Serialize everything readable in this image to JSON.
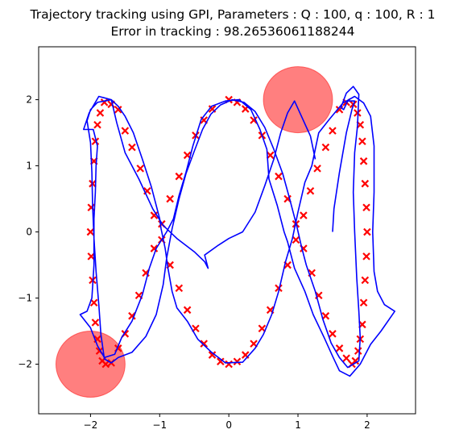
{
  "chart_data": {
    "type": "scatter",
    "title": "Trajectory tracking using GPI, Parameters : Q : 100, q : 100, R : 1",
    "subtitle": "Error in tracking : 98.26536061188244",
    "xlabel": "",
    "ylabel": "",
    "xlim": [
      -2.75,
      2.7
    ],
    "ylim": [
      -2.75,
      2.8
    ],
    "xticks": [
      -2,
      -1,
      0,
      1,
      2
    ],
    "yticks": [
      -2,
      -1,
      0,
      1,
      2
    ],
    "xtick_labels": [
      "−2",
      "−1",
      "0",
      "1",
      "2"
    ],
    "ytick_labels": [
      "−2",
      "−1",
      "0",
      "1",
      "2"
    ],
    "grid": false,
    "obstacles": [
      {
        "cx": 1.0,
        "cy": 2.0,
        "r": 0.5,
        "color": "#ff0000",
        "alpha": 0.5
      },
      {
        "cx": -2.0,
        "cy": -2.0,
        "r": 0.5,
        "color": "#ff0000",
        "alpha": 0.5
      }
    ],
    "reference": {
      "marker": "x",
      "color": "#ff0000",
      "points": [
        [
          0.0,
          2.0
        ],
        [
          0.12,
          1.96
        ],
        [
          0.24,
          1.86
        ],
        [
          0.36,
          1.69
        ],
        [
          0.48,
          1.46
        ],
        [
          0.6,
          1.16
        ],
        [
          0.72,
          0.84
        ],
        [
          0.85,
          0.5
        ],
        [
          0.97,
          0.12
        ],
        [
          1.08,
          -0.25
        ],
        [
          1.2,
          -0.62
        ],
        [
          1.3,
          -0.96
        ],
        [
          1.4,
          -1.27
        ],
        [
          1.5,
          -1.54
        ],
        [
          1.6,
          -1.76
        ],
        [
          1.7,
          -1.91
        ],
        [
          1.78,
          -2.0
        ],
        [
          1.83,
          -1.95
        ],
        [
          1.87,
          -1.8
        ],
        [
          1.9,
          -1.62
        ],
        [
          1.93,
          -1.4
        ],
        [
          1.95,
          -1.07
        ],
        [
          1.97,
          -0.73
        ],
        [
          1.99,
          -0.37
        ],
        [
          2.0,
          0.0
        ],
        [
          1.99,
          0.37
        ],
        [
          1.97,
          0.73
        ],
        [
          1.95,
          1.07
        ],
        [
          1.93,
          1.37
        ],
        [
          1.9,
          1.62
        ],
        [
          1.86,
          1.8
        ],
        [
          1.8,
          1.93
        ],
        [
          1.7,
          1.96
        ],
        [
          1.6,
          1.85
        ],
        [
          1.5,
          1.53
        ],
        [
          1.4,
          1.28
        ],
        [
          1.28,
          0.96
        ],
        [
          1.18,
          0.62
        ],
        [
          1.08,
          0.25
        ],
        [
          0.97,
          -0.12
        ],
        [
          0.85,
          -0.5
        ],
        [
          0.72,
          -0.85
        ],
        [
          0.6,
          -1.18
        ],
        [
          0.48,
          -1.46
        ],
        [
          0.36,
          -1.69
        ],
        [
          0.24,
          -1.86
        ],
        [
          0.12,
          -1.96
        ],
        [
          0.0,
          -2.0
        ],
        [
          -0.12,
          -1.96
        ],
        [
          -0.24,
          -1.86
        ],
        [
          -0.36,
          -1.69
        ],
        [
          -0.48,
          -1.46
        ],
        [
          -0.6,
          -1.18
        ],
        [
          -0.72,
          -0.85
        ],
        [
          -0.85,
          -0.5
        ],
        [
          -0.97,
          -0.12
        ],
        [
          -1.08,
          0.25
        ],
        [
          -1.18,
          0.62
        ],
        [
          -1.28,
          0.96
        ],
        [
          -1.4,
          1.28
        ],
        [
          -1.5,
          1.53
        ],
        [
          -1.6,
          1.85
        ],
        [
          -1.7,
          1.93
        ],
        [
          -1.8,
          1.96
        ],
        [
          -1.86,
          1.8
        ],
        [
          -1.9,
          1.62
        ],
        [
          -1.93,
          1.37
        ],
        [
          -1.95,
          1.07
        ],
        [
          -1.97,
          0.73
        ],
        [
          -1.99,
          0.37
        ],
        [
          -2.0,
          0.0
        ],
        [
          -1.99,
          -0.37
        ],
        [
          -1.97,
          -0.73
        ],
        [
          -1.95,
          -1.07
        ],
        [
          -1.93,
          -1.37
        ],
        [
          -1.9,
          -1.62
        ],
        [
          -1.87,
          -1.8
        ],
        [
          -1.83,
          -1.95
        ],
        [
          -1.78,
          -2.0
        ],
        [
          -1.7,
          -1.98
        ],
        [
          -1.6,
          -1.76
        ],
        [
          -1.5,
          -1.54
        ],
        [
          -1.4,
          -1.27
        ],
        [
          -1.3,
          -0.96
        ],
        [
          -1.2,
          -0.62
        ],
        [
          -1.08,
          -0.25
        ],
        [
          -0.97,
          0.12
        ],
        [
          -0.85,
          0.5
        ],
        [
          -0.72,
          0.84
        ],
        [
          -0.6,
          1.16
        ],
        [
          -0.48,
          1.46
        ],
        [
          -0.36,
          1.69
        ],
        [
          -0.24,
          1.86
        ]
      ]
    },
    "trajectory": {
      "color": "#0000ff",
      "points": [
        [
          1.5,
          0.0
        ],
        [
          1.52,
          0.35
        ],
        [
          1.6,
          0.9
        ],
        [
          1.7,
          1.5
        ],
        [
          1.78,
          1.85
        ],
        [
          1.82,
          1.98
        ],
        [
          1.72,
          1.98
        ],
        [
          1.66,
          1.85
        ],
        [
          1.62,
          1.88
        ],
        [
          1.7,
          2.1
        ],
        [
          1.8,
          2.2
        ],
        [
          1.88,
          2.08
        ],
        [
          1.86,
          1.6
        ],
        [
          1.82,
          1.2
        ],
        [
          1.8,
          0.6
        ],
        [
          1.82,
          0.0
        ],
        [
          1.85,
          -0.7
        ],
        [
          1.88,
          -1.2
        ],
        [
          1.9,
          -1.6
        ],
        [
          1.88,
          -1.95
        ],
        [
          1.72,
          -2.05
        ],
        [
          1.6,
          -1.9
        ],
        [
          1.48,
          -1.68
        ],
        [
          1.36,
          -1.32
        ],
        [
          1.25,
          -0.9
        ],
        [
          1.12,
          -0.5
        ],
        [
          1.05,
          -0.22
        ],
        [
          0.98,
          0.1
        ],
        [
          0.88,
          0.5
        ],
        [
          0.78,
          0.88
        ],
        [
          0.65,
          1.25
        ],
        [
          0.52,
          1.58
        ],
        [
          0.38,
          1.82
        ],
        [
          0.22,
          1.96
        ],
        [
          0.05,
          2.0
        ],
        [
          -0.12,
          1.92
        ],
        [
          -0.26,
          1.78
        ],
        [
          -0.38,
          1.55
        ],
        [
          -0.5,
          1.22
        ],
        [
          -0.62,
          0.88
        ],
        [
          -0.72,
          0.5
        ],
        [
          -0.82,
          0.05
        ],
        [
          -0.9,
          -0.4
        ],
        [
          -0.95,
          -0.8
        ],
        [
          -1.05,
          -1.25
        ],
        [
          -1.2,
          -1.58
        ],
        [
          -1.4,
          -1.82
        ],
        [
          -1.6,
          -1.9
        ],
        [
          -1.7,
          -1.98
        ],
        [
          -1.8,
          -1.92
        ],
        [
          -1.85,
          -1.55
        ],
        [
          -1.88,
          -1.1
        ],
        [
          -1.92,
          -0.6
        ],
        [
          -1.95,
          -0.1
        ],
        [
          -1.97,
          0.4
        ],
        [
          -1.98,
          0.9
        ],
        [
          -2.0,
          1.35
        ],
        [
          -2.05,
          1.68
        ],
        [
          -2.0,
          1.85
        ],
        [
          -1.9,
          1.96
        ],
        [
          -1.7,
          2.0
        ],
        [
          -1.6,
          1.9
        ],
        [
          -1.5,
          1.75
        ],
        [
          -1.38,
          1.5
        ],
        [
          -1.25,
          1.1
        ],
        [
          -1.12,
          0.68
        ],
        [
          -1.0,
          0.2
        ],
        [
          -0.98,
          0.05
        ],
        [
          -0.92,
          -0.25
        ],
        [
          -0.88,
          -0.55
        ],
        [
          -0.82,
          -0.9
        ],
        [
          -0.75,
          -1.15
        ],
        [
          -0.6,
          -1.35
        ],
        [
          -0.45,
          -1.62
        ],
        [
          -0.25,
          -1.82
        ],
        [
          -0.05,
          -1.98
        ],
        [
          0.2,
          -1.97
        ],
        [
          0.38,
          -1.76
        ],
        [
          0.5,
          -1.55
        ],
        [
          0.62,
          -1.25
        ],
        [
          0.72,
          -0.9
        ],
        [
          0.82,
          -0.45
        ],
        [
          0.92,
          -0.1
        ],
        [
          1.0,
          0.3
        ],
        [
          1.1,
          0.75
        ],
        [
          1.2,
          1.0
        ],
        [
          1.3,
          1.5
        ],
        [
          1.45,
          1.7
        ],
        [
          1.65,
          1.95
        ],
        [
          1.82,
          2.05
        ],
        [
          1.95,
          1.95
        ],
        [
          2.05,
          1.75
        ],
        [
          2.1,
          1.3
        ],
        [
          2.1,
          0.6
        ],
        [
          2.08,
          0.0
        ],
        [
          2.1,
          -0.6
        ],
        [
          2.15,
          -0.9
        ],
        [
          2.25,
          -1.1
        ],
        [
          2.4,
          -1.2
        ],
        [
          2.2,
          -1.5
        ],
        [
          2.05,
          -1.7
        ],
        [
          1.9,
          -2.0
        ],
        [
          1.75,
          -2.18
        ],
        [
          1.6,
          -2.1
        ],
        [
          1.5,
          -1.88
        ],
        [
          1.38,
          -1.6
        ],
        [
          1.22,
          -1.25
        ],
        [
          1.1,
          -0.9
        ],
        [
          0.95,
          -0.55
        ],
        [
          0.85,
          -0.15
        ],
        [
          0.8,
          0.0
        ],
        [
          0.7,
          0.4
        ],
        [
          0.58,
          0.8
        ],
        [
          0.55,
          1.25
        ],
        [
          0.45,
          1.55
        ],
        [
          0.32,
          1.85
        ],
        [
          0.15,
          2.0
        ],
        [
          -0.05,
          1.98
        ],
        [
          -0.25,
          1.9
        ],
        [
          -0.4,
          1.7
        ],
        [
          -0.52,
          1.3
        ],
        [
          -0.62,
          0.9
        ],
        [
          -0.72,
          0.55
        ],
        [
          -0.8,
          0.2
        ],
        [
          -0.9,
          0.0
        ],
        [
          -1.05,
          -0.25
        ],
        [
          -1.15,
          -0.55
        ],
        [
          -1.25,
          -0.95
        ],
        [
          -1.4,
          -1.35
        ],
        [
          -1.55,
          -1.6
        ],
        [
          -1.65,
          -1.85
        ],
        [
          -1.8,
          -1.9
        ],
        [
          -1.9,
          -1.72
        ],
        [
          -2.0,
          -1.45
        ],
        [
          -2.15,
          -1.25
        ],
        [
          -2.05,
          -1.2
        ],
        [
          -1.98,
          -1.0
        ],
        [
          -1.95,
          -0.5
        ],
        [
          -1.95,
          0.2
        ],
        [
          -1.93,
          0.6
        ],
        [
          -1.92,
          1.0
        ],
        [
          -1.9,
          1.3
        ],
        [
          -1.96,
          1.55
        ],
        [
          -2.1,
          1.55
        ],
        [
          -2.02,
          1.8
        ],
        [
          -1.88,
          2.05
        ],
        [
          -1.7,
          2.0
        ],
        [
          -1.62,
          1.65
        ],
        [
          -1.5,
          1.2
        ],
        [
          -1.3,
          0.8
        ],
        [
          -1.1,
          0.35
        ],
        [
          -0.95,
          0.1
        ],
        [
          -0.75,
          -0.1
        ],
        [
          -0.5,
          -0.3
        ],
        [
          -0.35,
          -0.45
        ],
        [
          -0.3,
          -0.55
        ],
        [
          -0.35,
          -0.35
        ],
        [
          -0.15,
          -0.2
        ],
        [
          0.0,
          -0.1
        ],
        [
          0.2,
          0.0
        ],
        [
          0.38,
          0.3
        ],
        [
          0.52,
          0.7
        ],
        [
          0.65,
          1.1
        ],
        [
          0.75,
          1.5
        ],
        [
          0.85,
          1.8
        ],
        [
          0.95,
          1.98
        ],
        [
          1.05,
          1.75
        ],
        [
          1.18,
          1.45
        ],
        [
          1.25,
          1.1
        ]
      ]
    }
  }
}
